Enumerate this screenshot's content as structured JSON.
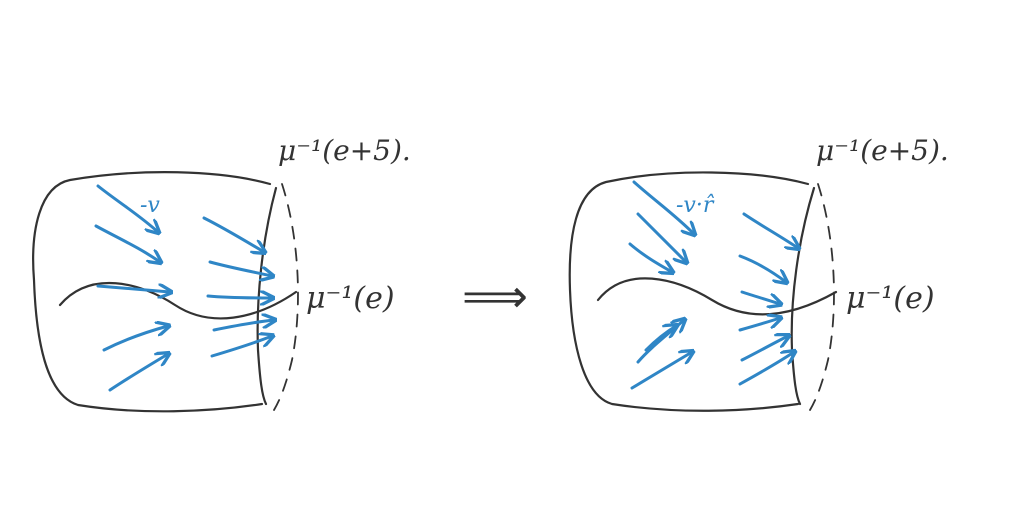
{
  "colors": {
    "ink": "#333333",
    "flow": "#2f86c6"
  },
  "implies_symbol": "⟹",
  "left_panel": {
    "top_label": "μ⁻¹(e+5).",
    "mid_label": "μ⁻¹(e)",
    "vector_label": "-v",
    "arrow_description": "arrows flow toward the level set"
  },
  "right_panel": {
    "top_label": "μ⁻¹(e+5).",
    "mid_label": "μ⁻¹(e)",
    "vector_label": "-v·r̂",
    "arrow_description": "arrows tangent to the level set"
  }
}
